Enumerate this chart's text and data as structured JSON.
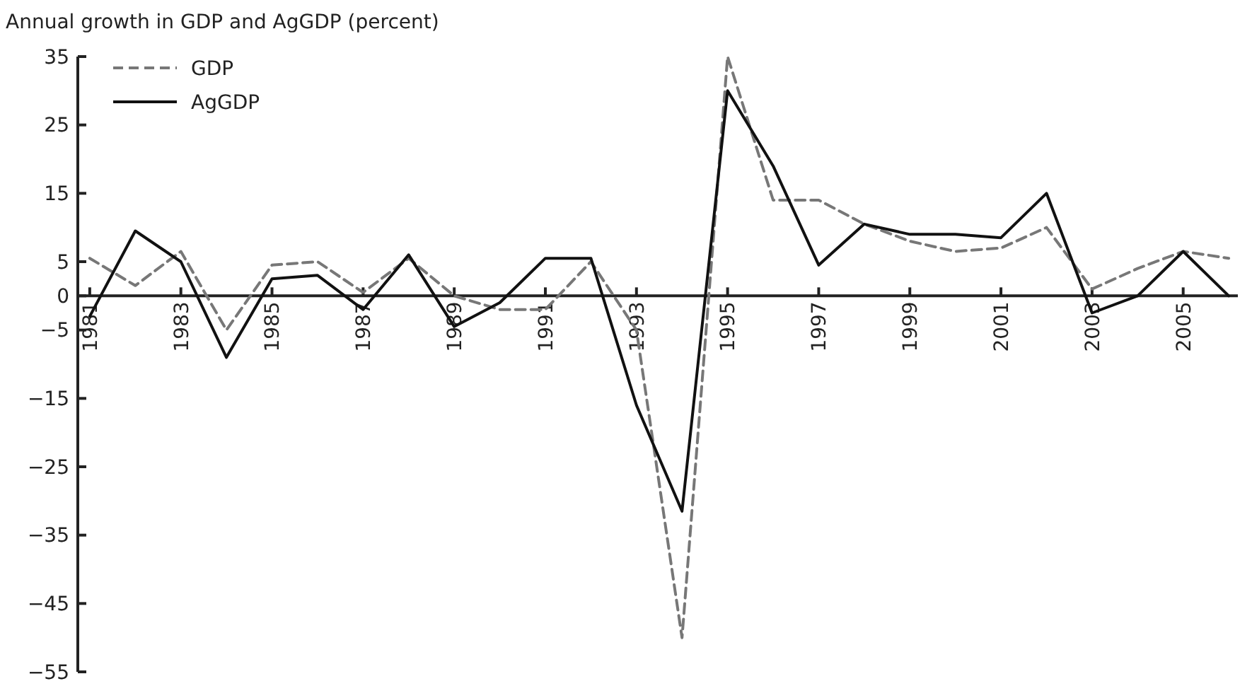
{
  "chart_data": {
    "type": "line",
    "title": "Annual growth in GDP and AgGDP (percent)",
    "x": [
      1981,
      1982,
      1983,
      1984,
      1985,
      1986,
      1987,
      1988,
      1989,
      1990,
      1991,
      1992,
      1993,
      1994,
      1995,
      1996,
      1997,
      1998,
      1999,
      2000,
      2001,
      2002,
      2003,
      2004,
      2005,
      2006
    ],
    "xlim": [
      1980.8,
      2006.2
    ],
    "xticks": [
      1981,
      1983,
      1985,
      1987,
      1989,
      1991,
      1993,
      1995,
      1997,
      1999,
      2001,
      2003,
      2005
    ],
    "ylim": [
      -55,
      35
    ],
    "yticks": [
      35,
      25,
      15,
      5,
      0,
      -5,
      -15,
      -25,
      -35,
      -45,
      -55
    ],
    "legend": "top left",
    "grid": false,
    "series": [
      {
        "name": "GDP",
        "color": "#777777",
        "line_style": "dashed",
        "values": [
          5.5,
          1.5,
          6.5,
          -5,
          4.5,
          5,
          0.5,
          5.5,
          0,
          -2,
          -2,
          5,
          -5,
          -50,
          35,
          14,
          14,
          10.5,
          8,
          6.5,
          7,
          10,
          1,
          4,
          6.5,
          5.5
        ]
      },
      {
        "name": "AgGDP",
        "color": "#111111",
        "line_style": "solid",
        "values": [
          -3,
          9.5,
          5,
          -9,
          2.5,
          3,
          -2,
          6,
          -4.5,
          -1,
          5.5,
          5.5,
          -16,
          -31.5,
          30,
          19,
          4.5,
          10.5,
          9,
          9,
          8.5,
          15,
          -2.5,
          0,
          6.5,
          0
        ]
      }
    ]
  }
}
